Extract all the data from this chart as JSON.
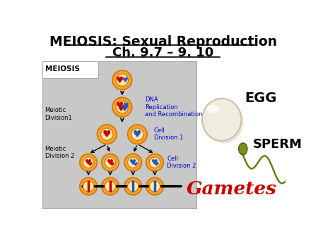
{
  "title_line1": "MEIOSIS: Sexual Reproduction",
  "title_line2": "Ch. 9.7 – 9. 10",
  "bg_color": "#ffffff",
  "diagram_bg": "#c8c8c8",
  "label_meiosis": "MEIOSIS",
  "label_meiotic1": "Meiotic\nDivision1",
  "label_meiotic2": "Meiotic\nDivision 2",
  "label_dna": "DNA\nReplication\nand Recombination",
  "label_cell1": "Cell\nDivision 1",
  "label_cell2": "Cell\nDivision 2",
  "label_egg": "EGG",
  "label_sperm": "SPERM",
  "label_gametes": "Gametes",
  "gametes_color": "#cc0000",
  "cell_fill": "#f5a030",
  "cell_inner": "#fbeaaa",
  "cell_border": "#d07800",
  "blue_label": "#0000cc"
}
